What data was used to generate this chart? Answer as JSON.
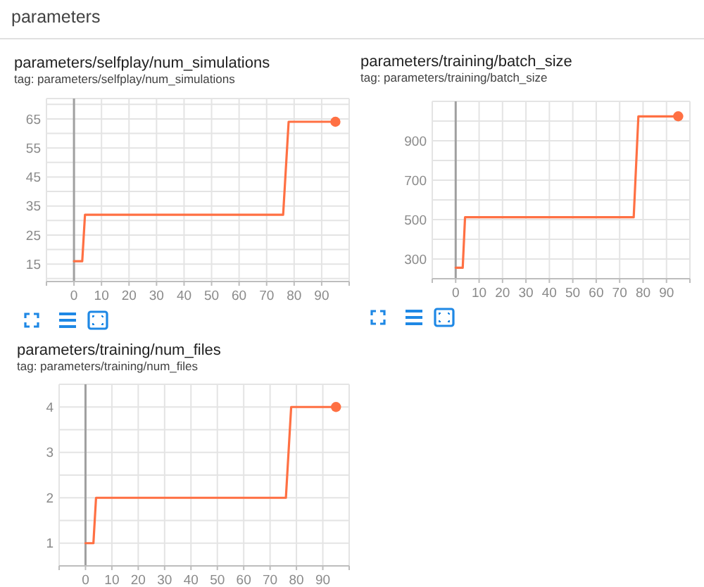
{
  "chart_data": [
    {
      "type": "line",
      "title": "parameters/selfplay/num_simulations",
      "subtitle": "tag: parameters/selfplay/num_simulations",
      "annotations": [
        "parameters"
      ],
      "series": [
        {
          "color": "#ff7043",
          "x": [
            0,
            3,
            4,
            76,
            78,
            95
          ],
          "values": [
            16,
            16,
            32,
            32,
            64,
            64
          ]
        },
        {
          "type": "scatter",
          "marker": "circle",
          "color": "#ff7043",
          "x": [
            95
          ],
          "values": [
            64
          ]
        }
      ],
      "xlim": [
        -10,
        100
      ],
      "xticks": [
        0,
        10,
        20,
        30,
        40,
        50,
        60,
        70,
        80,
        90
      ],
      "ylim": [
        9,
        72
      ],
      "yticks": [
        {
          "value": 10,
          "label": null
        },
        15,
        {
          "value": 20,
          "label": null
        },
        25,
        {
          "value": 30,
          "label": null
        },
        35,
        {
          "value": 40,
          "label": null
        },
        45,
        {
          "value": 50,
          "label": null
        },
        55,
        {
          "value": 60,
          "label": null
        },
        65,
        {
          "value": 70,
          "label": null
        }
      ],
      "grid": true,
      "ref_lines": [
        {
          "axis": "x",
          "value": 0,
          "color": "#a0a0a0"
        }
      ]
    },
    {
      "type": "line",
      "title": "parameters/training/batch_size",
      "subtitle": "tag: parameters/training/batch_size",
      "series": [
        {
          "color": "#ff7043",
          "x": [
            0,
            3,
            4,
            76,
            78,
            95
          ],
          "values": [
            256,
            256,
            512,
            512,
            1024,
            1024
          ]
        },
        {
          "type": "scatter",
          "marker": "circle",
          "color": "#ff7043",
          "x": [
            95
          ],
          "values": [
            1024
          ]
        }
      ],
      "xlim": [
        -10,
        100
      ],
      "xticks": [
        0,
        10,
        20,
        30,
        40,
        50,
        60,
        70,
        80,
        90
      ],
      "ylim": [
        200,
        1100
      ],
      "yticks": [
        300,
        {
          "value": 400,
          "label": null
        },
        500,
        {
          "value": 600,
          "label": null
        },
        700,
        {
          "value": 800,
          "label": null
        },
        900,
        {
          "value": 1000,
          "label": null
        }
      ],
      "grid": true,
      "ref_lines": [
        {
          "axis": "x",
          "value": 0,
          "color": "#a0a0a0"
        }
      ]
    },
    {
      "type": "line",
      "title": "parameters/training/num_files",
      "subtitle": "tag: parameters/training/num_files",
      "series": [
        {
          "color": "#ff7043",
          "x": [
            0,
            3,
            4,
            76,
            78,
            95
          ],
          "values": [
            1,
            1,
            2,
            2,
            4,
            4
          ]
        },
        {
          "type": "scatter",
          "marker": "circle",
          "color": "#ff7043",
          "x": [
            95
          ],
          "values": [
            4
          ]
        }
      ],
      "xlim": [
        -10,
        100
      ],
      "xticks": [
        0,
        10,
        20,
        30,
        40,
        50,
        60,
        70,
        80,
        90
      ],
      "ylim": [
        0.5,
        4.5
      ],
      "yticks": [
        1,
        {
          "value": 1.5,
          "label": null
        },
        2,
        {
          "value": 2.5,
          "label": null
        },
        3,
        {
          "value": 3.5,
          "label": null
        },
        4
      ],
      "grid": true,
      "ref_lines": [
        {
          "axis": "x",
          "value": 0,
          "color": "#a0a0a0"
        }
      ]
    }
  ]
}
